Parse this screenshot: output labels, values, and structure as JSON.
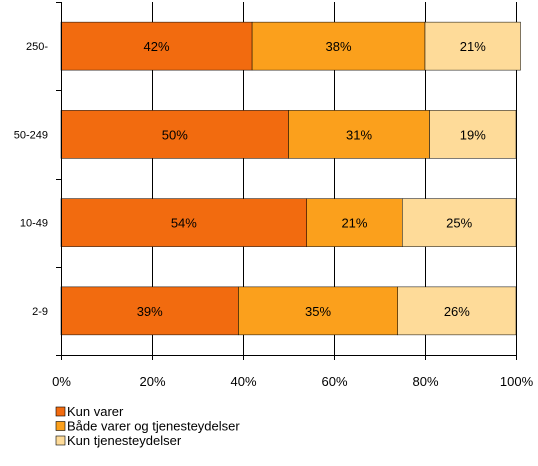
{
  "chart_data": {
    "type": "bar",
    "orientation": "horizontal",
    "stacked": true,
    "title": "",
    "xlabel": "",
    "ylabel": "",
    "categories": [
      "250-",
      "50-249",
      "10-49",
      "2-9"
    ],
    "x_ticks": [
      "0%",
      "20%",
      "40%",
      "60%",
      "80%",
      "100%"
    ],
    "xlim": [
      0,
      100
    ],
    "grid": true,
    "legend_position": "bottom-left",
    "series": [
      {
        "name": "Kun varer",
        "color": "#f26b0f",
        "values": [
          42,
          50,
          54,
          39
        ],
        "labels": [
          "42%",
          "50%",
          "54%",
          "39%"
        ]
      },
      {
        "name": "Både varer og tjenesteydelser",
        "color": "#fba01c",
        "values": [
          38,
          31,
          21,
          35
        ],
        "labels": [
          "38%",
          "31%",
          "21%",
          "35%"
        ]
      },
      {
        "name": "Kun tjenesteydelser",
        "color": "#fedb99",
        "values": [
          21,
          19,
          25,
          26
        ],
        "labels": [
          "21%",
          "19%",
          "25%",
          "26%"
        ]
      }
    ]
  }
}
